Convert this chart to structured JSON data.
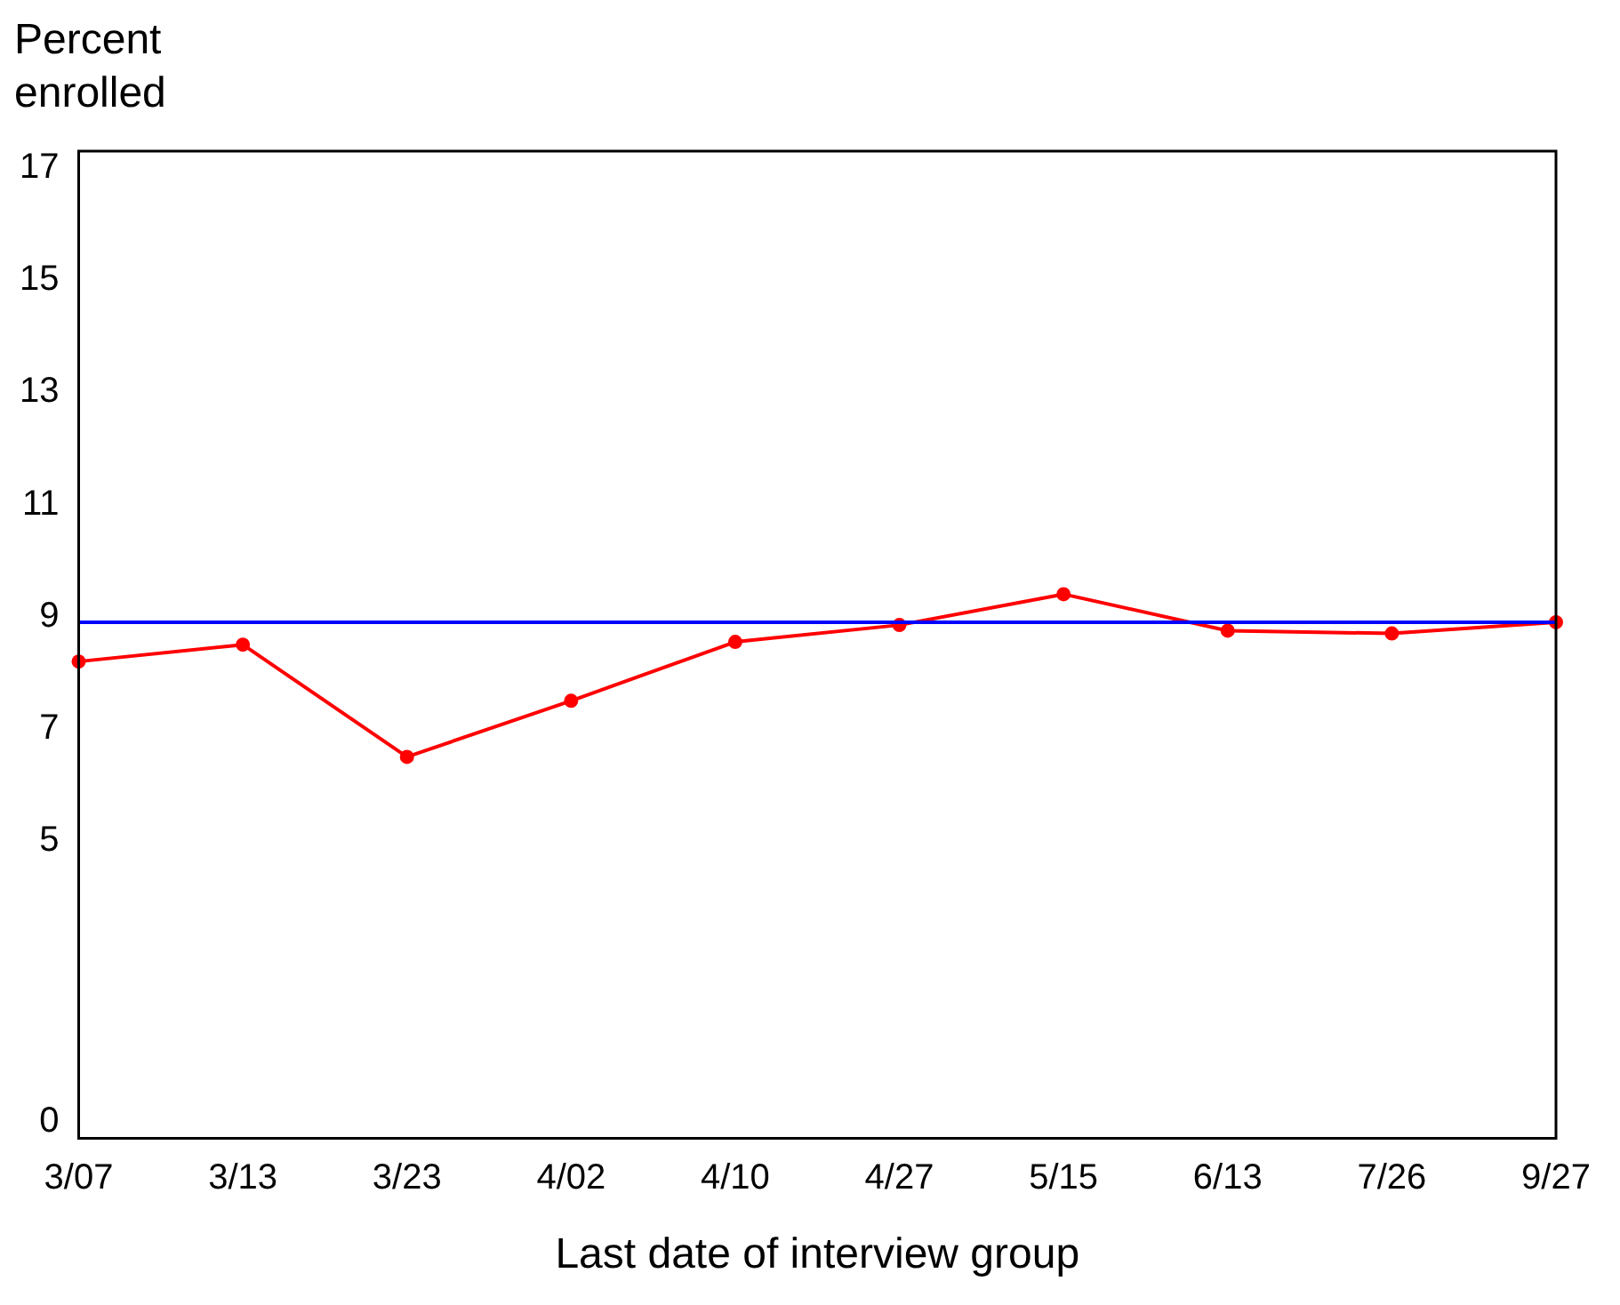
{
  "chart_data": {
    "type": "line",
    "ylabel": "Percent enrolled",
    "xlabel": "Last date of interview group",
    "categories": [
      "3/07",
      "3/13",
      "3/23",
      "4/02",
      "4/10",
      "4/27",
      "5/15",
      "6/13",
      "7/26",
      "9/27"
    ],
    "series": [
      {
        "color": "#ff0000",
        "values": [
          8.2,
          8.5,
          6.5,
          7.5,
          8.55,
          8.85,
          9.4,
          8.75,
          8.7,
          8.9
        ]
      }
    ],
    "ref_lines": [
      {
        "axis": "y",
        "value": 8.9,
        "color": "#0000ff"
      }
    ],
    "ylim": [
      -0.3,
      17.3
    ],
    "yticks": [
      0,
      5,
      7,
      9,
      11,
      13,
      15,
      17
    ],
    "grid": false,
    "legend": false,
    "marker": "circle",
    "line_style": "solid"
  }
}
